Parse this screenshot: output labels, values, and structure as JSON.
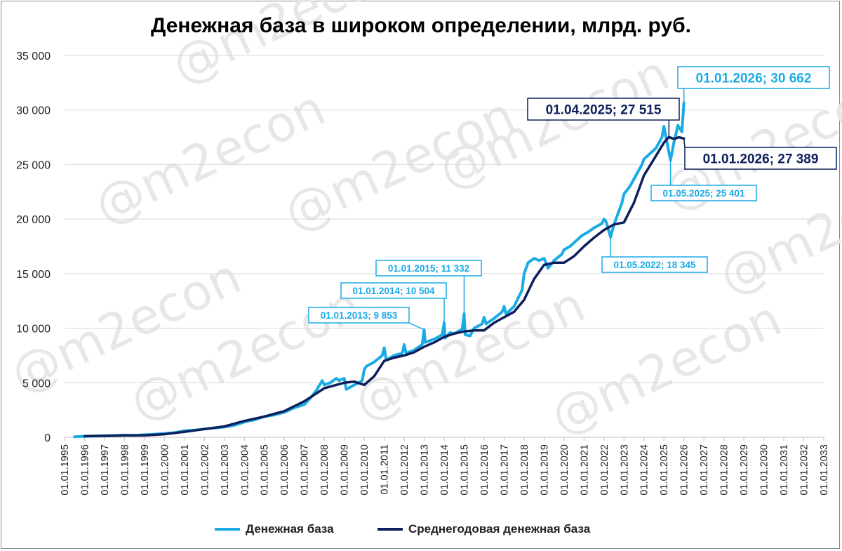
{
  "title": "Денежная база в широком определении, млрд. руб.",
  "legend": {
    "series1": "Денежная база",
    "series2": "Среднегодовая денежная база"
  },
  "colors": {
    "money_base": "#1aabe5",
    "avg_money_base": "#0e1f5b",
    "grid": "#d9d9d9",
    "watermark": "#e7e7e7"
  },
  "watermark": "@m2econ",
  "chart_data": {
    "type": "line",
    "title": "Денежная база в широком определении, млрд. руб.",
    "ylim": [
      0,
      35000
    ],
    "y_ticks": [
      "0",
      "5 000",
      "10 000",
      "15 000",
      "20 000",
      "25 000",
      "30 000",
      "35 000"
    ],
    "y_tick_values": [
      0,
      5000,
      10000,
      15000,
      20000,
      25000,
      30000,
      35000
    ],
    "x_range_years": [
      1995,
      2033
    ],
    "x_ticks": [
      "01.01.1995",
      "01.01.1996",
      "01.01.1997",
      "01.01.1998",
      "01.01.1999",
      "01.01.2000",
      "01.01.2001",
      "01.01.2002",
      "01.01.2003",
      "01.01.2004",
      "01.01.2005",
      "01.01.2006",
      "01.01.2007",
      "01.01.2008",
      "01.01.2009",
      "01.01.2010",
      "01.01.2011",
      "01.01.2012",
      "01.01.2013",
      "01.01.2014",
      "01.01.2015",
      "01.01.2016",
      "01.01.2017",
      "01.01.2018",
      "01.01.2019",
      "01.01.2020",
      "01.01.2021",
      "01.01.2022",
      "01.01.2023",
      "01.01.2024",
      "01.01.2025",
      "01.01.2026",
      "01.01.2027",
      "01.01.2028",
      "01.01.2029",
      "01.01.2030",
      "01.01.2031",
      "01.01.2032",
      "01.01.2033"
    ],
    "grid": true,
    "legend_position": "bottom",
    "series": [
      {
        "name": "Денежная база",
        "x": [
          1995.5,
          1996.0,
          1996.5,
          1997.0,
          1997.5,
          1998.0,
          1998.5,
          1999.0,
          1999.5,
          2000.0,
          2000.5,
          2001.0,
          2001.5,
          2002.0,
          2002.5,
          2003.0,
          2003.5,
          2004.0,
          2004.5,
          2005.0,
          2005.5,
          2006.0,
          2006.5,
          2007.0,
          2007.4,
          2007.6,
          2007.9,
          2008.0,
          2008.3,
          2008.6,
          2008.75,
          2009.0,
          2009.1,
          2009.5,
          2009.9,
          2010.0,
          2010.1,
          2010.5,
          2010.9,
          2011.0,
          2011.1,
          2011.5,
          2011.9,
          2012.0,
          2012.1,
          2012.5,
          2012.9,
          2013.0,
          2013.05,
          2013.5,
          2013.9,
          2014.0,
          2014.05,
          2014.3,
          2014.5,
          2014.9,
          2015.0,
          2015.05,
          2015.3,
          2015.5,
          2015.9,
          2016.0,
          2016.1,
          2016.5,
          2016.9,
          2017.0,
          2017.1,
          2017.5,
          2017.9,
          2018.0,
          2018.2,
          2018.5,
          2018.75,
          2019.0,
          2019.2,
          2019.5,
          2019.9,
          2020.0,
          2020.3,
          2020.6,
          2020.9,
          2021.0,
          2021.2,
          2021.5,
          2021.9,
          2022.0,
          2022.1,
          2022.33,
          2022.5,
          2022.7,
          2022.9,
          2023.0,
          2023.3,
          2023.6,
          2023.9,
          2024.0,
          2024.3,
          2024.6,
          2024.9,
          2025.0,
          2025.1,
          2025.33,
          2025.5,
          2025.7,
          2025.9,
          2026.0
        ],
        "values": [
          50,
          90,
          110,
          140,
          160,
          200,
          180,
          230,
          280,
          350,
          420,
          600,
          650,
          760,
          850,
          940,
          1100,
          1400,
          1600,
          1900,
          2050,
          2300,
          2700,
          3000,
          3800,
          4300,
          5200,
          4800,
          5000,
          5400,
          5200,
          5400,
          4400,
          4800,
          5200,
          6200,
          6500,
          6900,
          7500,
          8200,
          7100,
          7500,
          7700,
          8500,
          7700,
          8000,
          8500,
          9853,
          8700,
          9000,
          9400,
          10504,
          9100,
          9600,
          9500,
          9900,
          11332,
          9400,
          9300,
          10000,
          10400,
          11000,
          10400,
          10900,
          11500,
          12000,
          11300,
          12000,
          13500,
          15000,
          16000,
          16400,
          16200,
          16400,
          15500,
          16200,
          16800,
          17200,
          17500,
          18000,
          18500,
          18600,
          18800,
          19200,
          19600,
          20000,
          19800,
          18345,
          19500,
          20500,
          21500,
          22300,
          23000,
          24000,
          25000,
          25500,
          26000,
          26500,
          27500,
          28500,
          27500,
          25401,
          27000,
          28600,
          28000,
          30662
        ]
      },
      {
        "name": "Среднегодовая денежная база",
        "x": [
          1996.0,
          1997.0,
          1998.0,
          1999.0,
          2000.0,
          2001.0,
          2002.0,
          2003.0,
          2004.0,
          2005.0,
          2006.0,
          2007.0,
          2008.0,
          2009.0,
          2009.5,
          2010.0,
          2010.5,
          2011.0,
          2011.5,
          2012.0,
          2012.5,
          2013.0,
          2013.5,
          2014.0,
          2014.5,
          2015.0,
          2015.5,
          2016.0,
          2016.5,
          2017.0,
          2017.5,
          2018.0,
          2018.5,
          2019.0,
          2019.5,
          2020.0,
          2020.5,
          2021.0,
          2021.5,
          2022.0,
          2022.5,
          2023.0,
          2023.5,
          2024.0,
          2024.5,
          2025.0,
          2025.25,
          2025.5,
          2025.75,
          2026.0
        ],
        "values": [
          100,
          130,
          170,
          180,
          280,
          500,
          750,
          1000,
          1500,
          1900,
          2400,
          3300,
          4500,
          5000,
          5100,
          4800,
          5600,
          7000,
          7300,
          7500,
          7800,
          8300,
          8700,
          9200,
          9500,
          9700,
          9800,
          9800,
          10500,
          11000,
          11500,
          12600,
          14500,
          15800,
          16000,
          16000,
          16600,
          17500,
          18300,
          19000,
          19500,
          19700,
          21500,
          24000,
          25500,
          27000,
          27515,
          27350,
          27500,
          27389
        ]
      }
    ],
    "annotations": [
      {
        "text": "01.01.2013; 9 853",
        "x": 2013.0,
        "y": 9853,
        "series": "Денежная база"
      },
      {
        "text": "01.01.2014; 10 504",
        "x": 2014.0,
        "y": 10504,
        "series": "Денежная база"
      },
      {
        "text": "01.01.2015; 11 332",
        "x": 2015.0,
        "y": 11332,
        "series": "Денежная база"
      },
      {
        "text": "01.05.2022; 18 345",
        "x": 2022.33,
        "y": 18345,
        "series": "Денежная база"
      },
      {
        "text": "01.05.2025; 25 401",
        "x": 2025.33,
        "y": 25401,
        "series": "Денежная база"
      },
      {
        "text": "01.01.2026;  30 662",
        "x": 2026.0,
        "y": 30662,
        "series": "Денежная база"
      },
      {
        "text": "01.04.2025;  27 515",
        "x": 2025.25,
        "y": 27515,
        "series": "Среднегодовая денежная база"
      },
      {
        "text": "01.01.2026;  27 389",
        "x": 2026.0,
        "y": 27389,
        "series": "Среднегодовая денежная база"
      }
    ]
  }
}
